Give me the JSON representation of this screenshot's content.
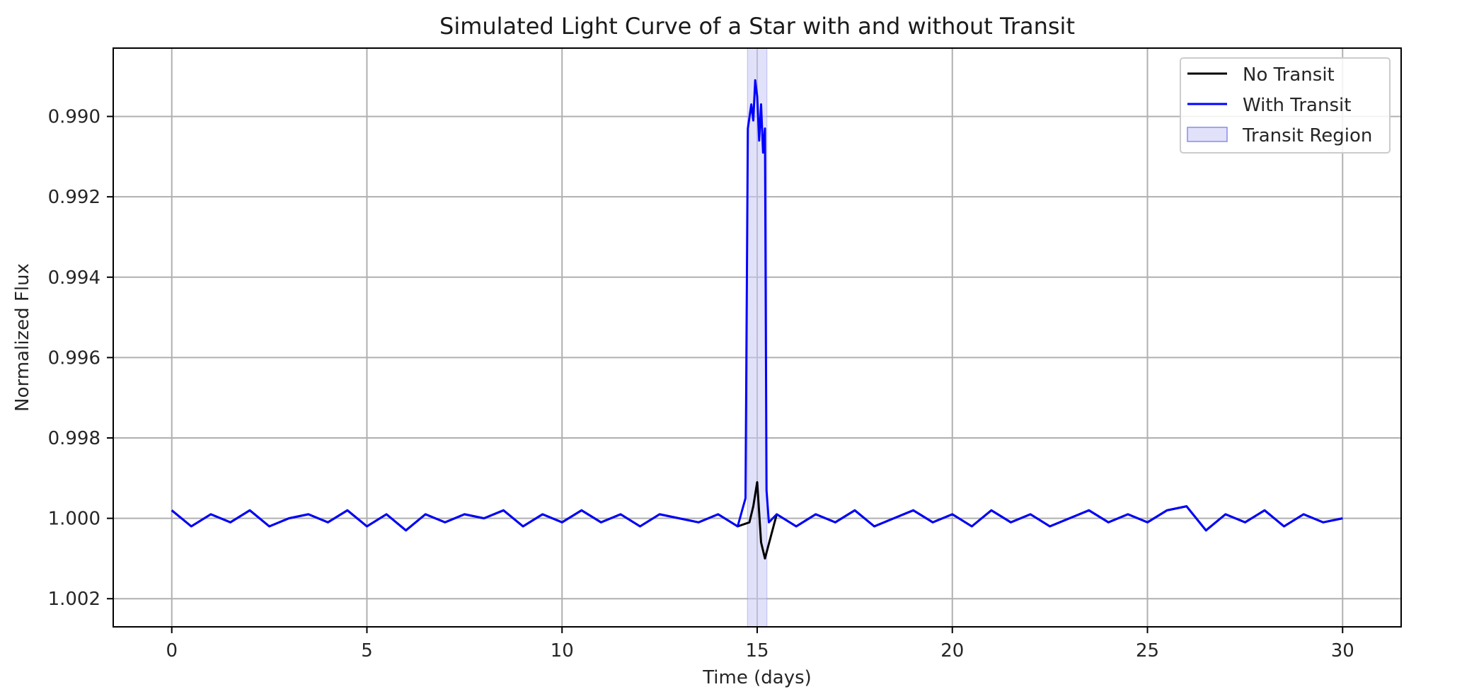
{
  "chart_data": {
    "type": "line",
    "title": "Simulated Light Curve of a Star with and without Transit",
    "xlabel": "Time (days)",
    "ylabel": "Normalized Flux",
    "xlim": [
      -1.5,
      31.5
    ],
    "ylim": [
      1.0027,
      0.9883
    ],
    "y_inverted": true,
    "x_ticks": [
      0,
      5,
      10,
      15,
      20,
      25,
      30
    ],
    "x_tick_labels": [
      "0",
      "5",
      "10",
      "15",
      "20",
      "25",
      "30"
    ],
    "y_ticks": [
      0.99,
      0.992,
      0.994,
      0.996,
      0.998,
      1.0,
      1.002
    ],
    "y_tick_labels": [
      "0.990",
      "0.992",
      "0.994",
      "0.996",
      "0.998",
      "1.000",
      "1.002"
    ],
    "grid": true,
    "legend_position": "top-right",
    "transit_region": {
      "name": "Transit Region",
      "x_start": 14.75,
      "x_end": 15.25,
      "color": "#c8c8f5"
    },
    "series": [
      {
        "name": "No Transit",
        "color": "#000000",
        "x": [
          0,
          0.5,
          1,
          1.5,
          2,
          2.5,
          3,
          3.5,
          4,
          4.5,
          5,
          5.5,
          6,
          6.5,
          7,
          7.5,
          8,
          8.5,
          9,
          9.5,
          10,
          10.5,
          11,
          11.5,
          12,
          12.5,
          13,
          13.5,
          14,
          14.5,
          14.8,
          14.9,
          15.0,
          15.1,
          15.2,
          15.5,
          16,
          16.5,
          17,
          17.5,
          18,
          18.5,
          19,
          19.5,
          20,
          20.5,
          21,
          21.5,
          22,
          22.5,
          23,
          23.5,
          24,
          24.5,
          25,
          25.5,
          26,
          26.5,
          27,
          27.5,
          28,
          28.5,
          29,
          29.5,
          30
        ],
        "y": [
          0.9998,
          1.0002,
          0.9999,
          1.0001,
          0.9998,
          1.0002,
          1.0,
          0.9999,
          1.0001,
          0.9998,
          1.0002,
          0.9999,
          1.0003,
          0.9999,
          1.0001,
          0.9999,
          1.0,
          0.9998,
          1.0002,
          0.9999,
          1.0001,
          0.9998,
          1.0001,
          0.9999,
          1.0002,
          0.9999,
          1.0,
          1.0001,
          0.9999,
          1.0002,
          1.0001,
          0.9997,
          0.9991,
          1.0006,
          1.001,
          0.9999,
          1.0002,
          0.9999,
          1.0001,
          0.9998,
          1.0002,
          1.0,
          0.9998,
          1.0001,
          0.9999,
          1.0002,
          0.9998,
          1.0001,
          0.9999,
          1.0002,
          1.0,
          0.9998,
          1.0001,
          0.9999,
          1.0001,
          0.9998,
          0.9997,
          1.0003,
          0.9999,
          1.0001,
          0.9998,
          1.0002,
          0.9999,
          1.0001,
          1.0
        ]
      },
      {
        "name": "With Transit",
        "color": "#0000ff",
        "x": [
          0,
          0.5,
          1,
          1.5,
          2,
          2.5,
          3,
          3.5,
          4,
          4.5,
          5,
          5.5,
          6,
          6.5,
          7,
          7.5,
          8,
          8.5,
          9,
          9.5,
          10,
          10.5,
          11,
          11.5,
          12,
          12.5,
          13,
          13.5,
          14,
          14.5,
          14.7,
          14.76,
          14.85,
          14.9,
          14.95,
          15.0,
          15.05,
          15.1,
          15.15,
          15.2,
          15.24,
          15.3,
          15.5,
          16,
          16.5,
          17,
          17.5,
          18,
          18.5,
          19,
          19.5,
          20,
          20.5,
          21,
          21.5,
          22,
          22.5,
          23,
          23.5,
          24,
          24.5,
          25,
          25.5,
          26,
          26.5,
          27,
          27.5,
          28,
          28.5,
          29,
          29.5,
          30
        ],
        "y": [
          0.9998,
          1.0002,
          0.9999,
          1.0001,
          0.9998,
          1.0002,
          1.0,
          0.9999,
          1.0001,
          0.9998,
          1.0002,
          0.9999,
          1.0003,
          0.9999,
          1.0001,
          0.9999,
          1.0,
          0.9998,
          1.0002,
          0.9999,
          1.0001,
          0.9998,
          1.0001,
          0.9999,
          1.0002,
          0.9999,
          1.0,
          1.0001,
          0.9999,
          1.0002,
          0.9995,
          0.9903,
          0.9897,
          0.9901,
          0.9891,
          0.9895,
          0.9906,
          0.9897,
          0.9909,
          0.9903,
          0.9993,
          1.0001,
          0.9999,
          1.0002,
          0.9999,
          1.0001,
          0.9998,
          1.0002,
          1.0,
          0.9998,
          1.0001,
          0.9999,
          1.0002,
          0.9998,
          1.0001,
          0.9999,
          1.0002,
          1.0,
          0.9998,
          1.0001,
          0.9999,
          1.0001,
          0.9998,
          0.9997,
          1.0003,
          0.9999,
          1.0001,
          0.9998,
          1.0002,
          0.9999,
          1.0001,
          1.0
        ]
      }
    ]
  }
}
